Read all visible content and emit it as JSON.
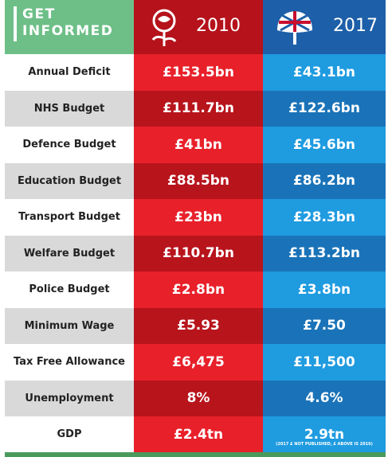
{
  "header": {
    "title": [
      "GET",
      "INFORMED"
    ],
    "columns": [
      "2010",
      "2017"
    ]
  },
  "table": {
    "rows": [
      [
        "Annual Deficit",
        "£153.5bn",
        "£43.1bn"
      ],
      [
        "NHS Budget",
        "£111.7bn",
        "£122.6bn"
      ],
      [
        "Defence Budget",
        "£41bn",
        "£45.6bn"
      ],
      [
        "Education Budget",
        "£88.5bn",
        "£86.2bn"
      ],
      [
        "Transport Budget",
        "£23bn",
        "£28.3bn"
      ],
      [
        "Welfare Budget",
        "£110.7bn",
        "£113.2bn"
      ],
      [
        "Police Budget",
        "£2.8bn",
        "£3.8bn"
      ],
      [
        "Minimum Wage",
        "£5.93",
        "£7.50"
      ],
      [
        "Tax Free Allowance",
        "£6,475",
        "£11,500"
      ],
      [
        "Unemployment",
        "8%",
        "4.6%"
      ],
      [
        "GDP",
        "£2.4tn",
        "2.9tn"
      ]
    ]
  },
  "footnote": "(2017 £ NOT PUBLISHED, £ ABOVE IS 2016)"
}
